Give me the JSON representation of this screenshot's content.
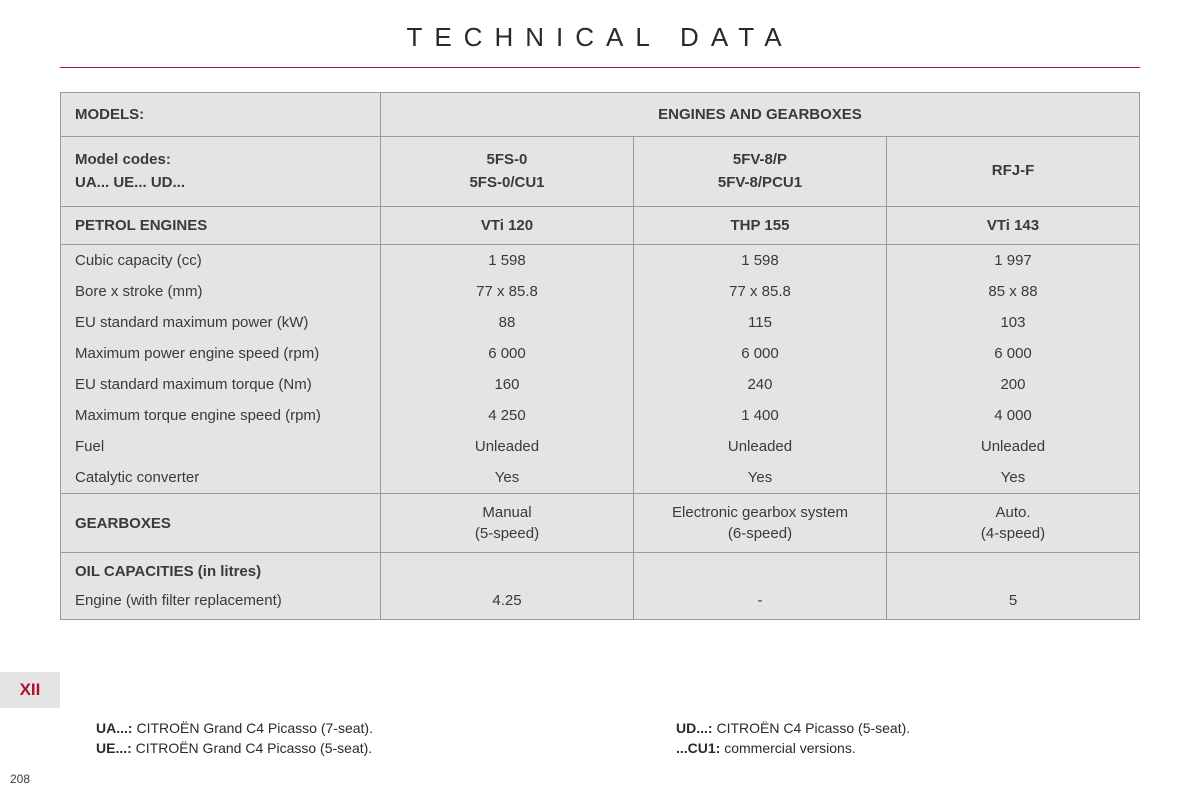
{
  "title": "TECHNICAL DATA",
  "chapter": "XII",
  "pageNumber": "208",
  "header": {
    "modelsLabel": "MODELS:",
    "engGearLabel": "ENGINES AND GEARBOXES",
    "codesLabel1": "Model codes:",
    "codesLabel2": "UA... UE... UD...",
    "codes": [
      {
        "l1": "5FS-0",
        "l2": "5FS-0/CU1"
      },
      {
        "l1": "5FV-8/P",
        "l2": "5FV-8/PCU1"
      },
      {
        "l1": "RFJ-F",
        "l2": ""
      }
    ]
  },
  "petrol": {
    "sectionLabel": "PETROL ENGINES",
    "names": [
      "VTi 120",
      "THP 155",
      "VTi 143"
    ],
    "rows": [
      {
        "label": "Cubic capacity (cc)",
        "vals": [
          "1 598",
          "1 598",
          "1 997"
        ]
      },
      {
        "label": "Bore x stroke (mm)",
        "vals": [
          "77 x 85.8",
          "77 x 85.8",
          "85 x 88"
        ]
      },
      {
        "label": "EU standard maximum power (kW)",
        "vals": [
          "88",
          "115",
          "103"
        ]
      },
      {
        "label": "Maximum power engine speed (rpm)",
        "vals": [
          "6 000",
          "6 000",
          "6 000"
        ]
      },
      {
        "label": "EU standard maximum torque (Nm)",
        "vals": [
          "160",
          "240",
          "200"
        ]
      },
      {
        "label": "Maximum torque engine speed (rpm)",
        "vals": [
          "4 250",
          "1 400",
          "4 000"
        ]
      },
      {
        "label": "Fuel",
        "vals": [
          "Unleaded",
          "Unleaded",
          "Unleaded"
        ]
      },
      {
        "label": "Catalytic converter",
        "vals": [
          "Yes",
          "Yes",
          "Yes"
        ]
      }
    ]
  },
  "gearboxes": {
    "label": "GEARBOXES",
    "entries": [
      {
        "l1": "Manual",
        "l2": "(5-speed)"
      },
      {
        "l1": "Electronic gearbox system",
        "l2": "(6-speed)"
      },
      {
        "l1": "Auto.",
        "l2": "(4-speed)"
      }
    ]
  },
  "oil": {
    "label": "OIL CAPACITIES (in litres)",
    "rowLabel": "Engine (with filter replacement)",
    "vals": [
      "4.25",
      "-",
      "5"
    ]
  },
  "footnotes": {
    "ua": {
      "label": "UA...:",
      "text": " CITROËN Grand C4 Picasso (7-seat)."
    },
    "ue": {
      "label": "UE...:",
      "text": " CITROËN Grand C4 Picasso (5-seat)."
    },
    "ud": {
      "label": "UD...:",
      "text": " CITROËN C4 Picasso (5-seat)."
    },
    "cu1": {
      "label": "...CU1:",
      "text": " commercial versions."
    }
  }
}
